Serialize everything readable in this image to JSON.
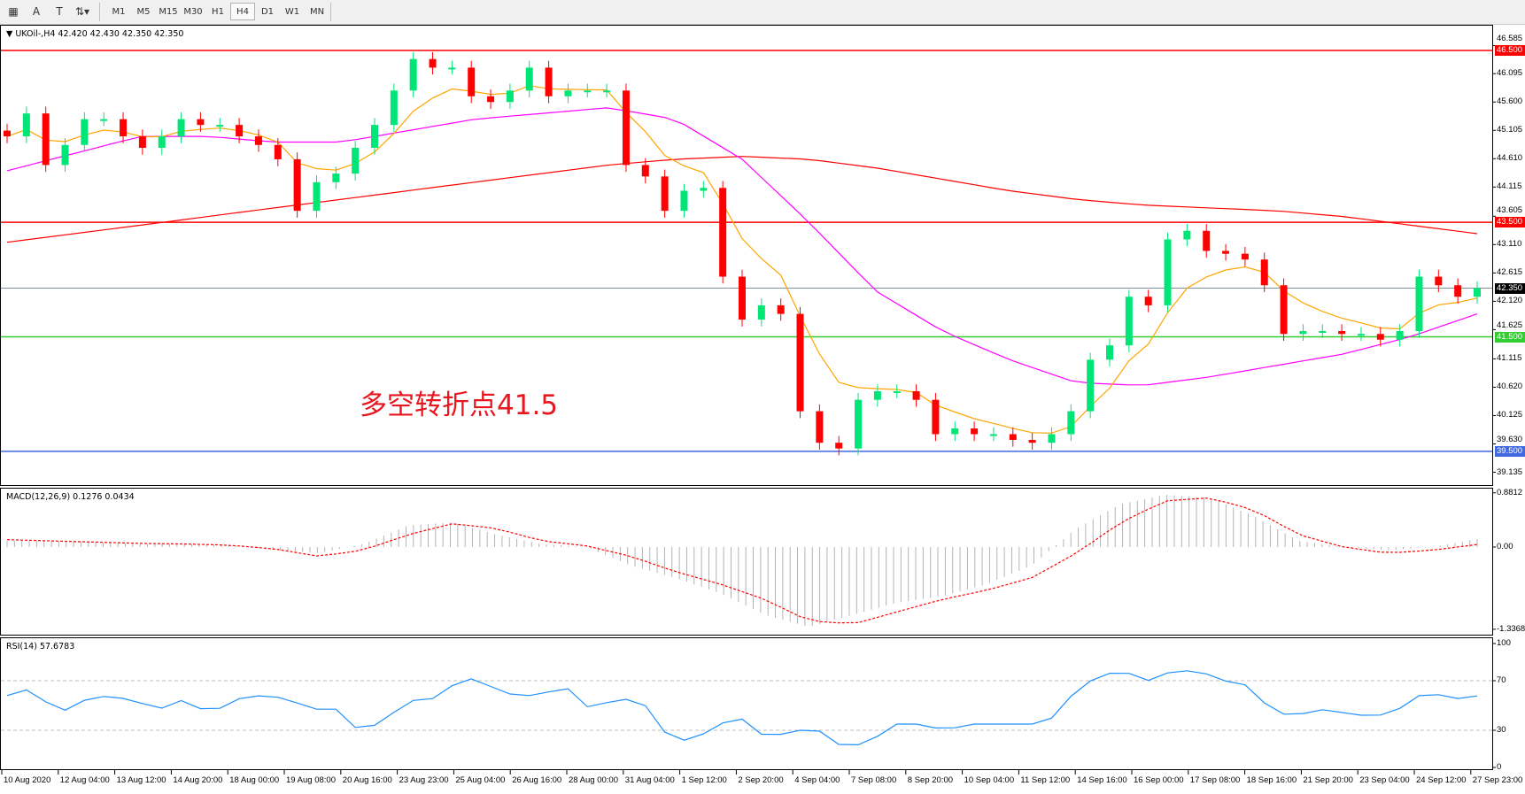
{
  "toolbar": {
    "tools": [
      {
        "name": "grid-icon",
        "glyph": "▦"
      },
      {
        "name": "text-a-icon",
        "glyph": "A"
      },
      {
        "name": "text-label-icon",
        "glyph": "T"
      },
      {
        "name": "arrows-icon",
        "glyph": "⇅▾"
      }
    ],
    "timeframes": [
      "M1",
      "M5",
      "M15",
      "M30",
      "H1",
      "H4",
      "D1",
      "W1",
      "MN"
    ],
    "selected": "H4"
  },
  "main": {
    "title": "UKOil-,H4  42.420 42.430 42.350 42.350",
    "annotation": "多空转折点41.5",
    "price_ticks": [
      "46.585",
      "46.095",
      "45.600",
      "45.105",
      "44.610",
      "44.115",
      "43.605",
      "43.110",
      "42.615",
      "42.120",
      "41.625",
      "41.115",
      "40.620",
      "40.125",
      "39.630",
      "39.135"
    ],
    "levels": [
      {
        "label": "46.500",
        "value": 46.5,
        "color": "#ff0000"
      },
      {
        "label": "43.500",
        "value": 43.5,
        "color": "#ff0000"
      },
      {
        "label": "41.500",
        "value": 41.5,
        "color": "#32cd32"
      },
      {
        "label": "39.500",
        "value": 39.5,
        "color": "#4169e1"
      }
    ],
    "current": {
      "label": "42.350",
      "value": 42.35,
      "color": "#000000"
    }
  },
  "macd": {
    "title": "MACD(12,26,9) 0.1276 0.0434",
    "ticks": [
      "0.8812",
      "0.00",
      "-1.3368"
    ]
  },
  "rsi": {
    "title": "RSI(14) 57.6783",
    "ticks": [
      "100",
      "70",
      "30",
      "0"
    ]
  },
  "time_labels": [
    "10 Aug 2020",
    "12 Aug 04:00",
    "13 Aug 12:00",
    "14 Aug 20:00",
    "18 Aug 00:00",
    "19 Aug 08:00",
    "20 Aug 16:00",
    "23 Aug 23:00",
    "25 Aug 04:00",
    "26 Aug 16:00",
    "28 Aug 00:00",
    "31 Aug 04:00",
    "1 Sep 12:00",
    "2 Sep 20:00",
    "4 Sep 04:00",
    "7 Sep 08:00",
    "8 Sep 20:00",
    "10 Sep 04:00",
    "11 Sep 12:00",
    "14 Sep 16:00",
    "16 Sep 00:00",
    "17 Sep 08:00",
    "18 Sep 16:00",
    "21 Sep 20:00",
    "23 Sep 04:00",
    "24 Sep 12:00",
    "27 Sep 23:00"
  ],
  "chart_data": {
    "type": "candlestick",
    "symbol": "UKOil-",
    "timeframe": "H4",
    "ylim": [
      39.135,
      46.585
    ],
    "colors": {
      "bull": "#00e676",
      "bear": "#ff0000",
      "fast_ma": "#ffa500",
      "mid_ma": "#ff00ff",
      "slow_ma": "#ff0000",
      "macd_hist": "#b4b4b4",
      "macd_signal": "#ff0000",
      "rsi": "#1e90ff"
    },
    "closes": [
      45.0,
      45.4,
      44.5,
      44.85,
      45.3,
      45.3,
      45.0,
      44.8,
      45.0,
      45.3,
      45.2,
      45.2,
      45.0,
      44.85,
      44.6,
      43.7,
      44.2,
      44.35,
      44.8,
      45.2,
      45.8,
      46.35,
      46.2,
      46.2,
      45.7,
      45.6,
      45.8,
      46.2,
      45.7,
      45.8,
      45.8,
      45.8,
      44.5,
      44.3,
      43.7,
      44.05,
      44.1,
      42.55,
      41.8,
      42.05,
      41.9,
      40.2,
      39.65,
      39.55,
      40.4,
      40.55,
      40.55,
      40.4,
      39.8,
      39.9,
      39.8,
      39.8,
      39.7,
      39.65,
      39.8,
      40.2,
      41.1,
      41.35,
      42.2,
      42.05,
      43.2,
      43.35,
      43.0,
      42.95,
      42.85,
      42.4,
      41.55,
      41.6,
      41.6,
      41.55,
      41.55,
      41.45,
      41.6,
      42.55,
      42.4,
      42.2,
      42.35
    ],
    "mid_ma": [
      44.4,
      44.7,
      45.0,
      45.0,
      44.9,
      44.9,
      45.1,
      45.3,
      45.4,
      45.5,
      45.3,
      44.6,
      43.5,
      42.3,
      41.6,
      41.1,
      40.7,
      40.65,
      40.8,
      41.0,
      41.2,
      41.5,
      41.9
    ],
    "slow_ma": [
      43.15,
      43.3,
      43.45,
      43.6,
      43.75,
      43.9,
      44.05,
      44.2,
      44.35,
      44.5,
      44.6,
      44.65,
      44.6,
      44.45,
      44.25,
      44.05,
      43.9,
      43.8,
      43.75,
      43.7,
      43.6,
      43.45,
      43.3
    ],
    "macd": [
      0.1,
      0.1,
      0.08,
      0.05,
      0.05,
      0.03,
      -0.05,
      -0.1,
      0.05,
      0.35,
      0.4,
      0.2,
      0.05,
      0.0,
      -0.3,
      -0.5,
      -0.75,
      -1.1,
      -1.3,
      -1.1,
      -0.9,
      -0.8,
      -0.6,
      -0.3,
      0.3,
      0.7,
      0.85,
      0.8,
      0.5,
      0.1,
      0.0,
      -0.05,
      0.0,
      0.13
    ],
    "macd_signal": [
      0.12,
      0.1,
      0.08,
      0.06,
      0.05,
      0.03,
      -0.03,
      -0.15,
      -0.05,
      0.2,
      0.38,
      0.3,
      0.1,
      0.02,
      -0.15,
      -0.4,
      -0.6,
      -0.85,
      -1.2,
      -1.25,
      -1.05,
      -0.85,
      -0.7,
      -0.5,
      -0.1,
      0.4,
      0.75,
      0.8,
      0.6,
      0.2,
      0.0,
      -0.1,
      -0.05,
      0.04
    ],
    "rsi": [
      58,
      64,
      43,
      54,
      58,
      54,
      47,
      55,
      43,
      55,
      58,
      56,
      47,
      47,
      27,
      41,
      54,
      56,
      74,
      66,
      58,
      58,
      66,
      47,
      55,
      55,
      27,
      20,
      35,
      39,
      23,
      30,
      30,
      16,
      20,
      35,
      35,
      30,
      35,
      35,
      35,
      35,
      58,
      74,
      78,
      70,
      78,
      78,
      70,
      66,
      43,
      43,
      47,
      43,
      41,
      48,
      62,
      55,
      57.68
    ],
    "rsi_levels": [
      70,
      30
    ]
  }
}
